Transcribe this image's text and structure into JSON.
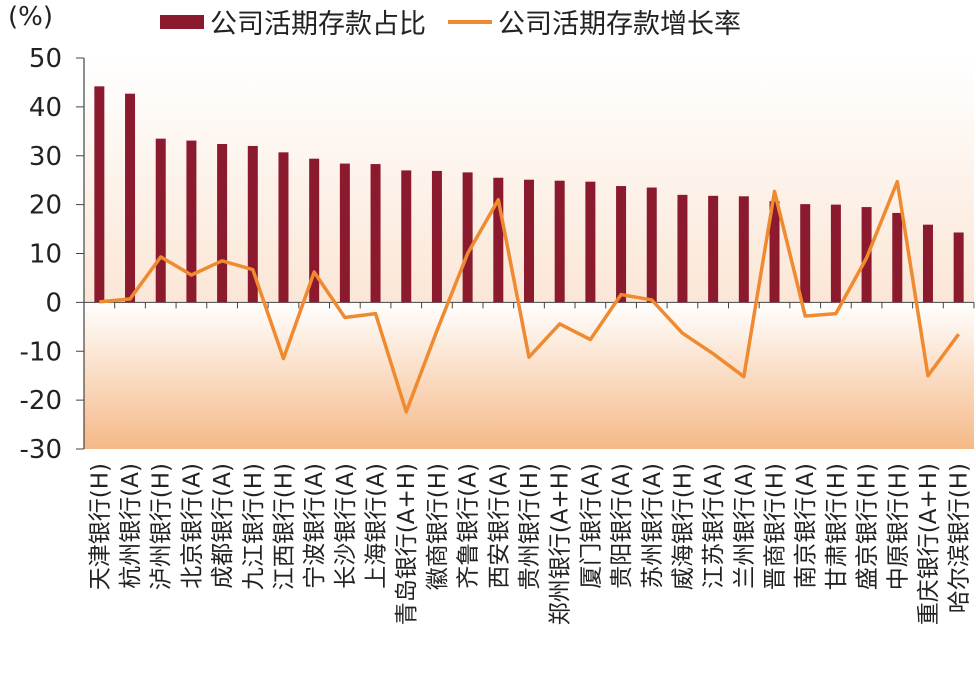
{
  "unit_label": "(%)",
  "colors": {
    "bar": "#8b1a2e",
    "line": "#f08a30",
    "axis": "#444444",
    "bg_top": "#ffffff",
    "bg_bottom": "#f5b987"
  },
  "chart_data": {
    "type": "bar+line",
    "ylim": [
      -30,
      50
    ],
    "yticks": [
      "50",
      "40",
      "30",
      "20",
      "10",
      "0",
      "-10",
      "-20",
      "-30"
    ],
    "ytick_values": [
      50,
      40,
      30,
      20,
      10,
      0,
      -10,
      -20,
      -30
    ],
    "categories": [
      "天津银行(H)",
      "杭州银行(A)",
      "泸州银行(H)",
      "北京银行(A)",
      "成都银行(A)",
      "九江银行(H)",
      "江西银行(H)",
      "宁波银行(A)",
      "长沙银行(A)",
      "上海银行(A)",
      "青岛银行(A+H)",
      "徽商银行(H)",
      "齐鲁银行(A)",
      "西安银行(A)",
      "贵州银行(H)",
      "郑州银行(A+H)",
      "厦门银行(A)",
      "贵阳银行(A)",
      "苏州银行(A)",
      "威海银行(H)",
      "江苏银行(A)",
      "兰州银行(A)",
      "晋商银行(H)",
      "南京银行(A)",
      "甘肃银行(H)",
      "盛京银行(H)",
      "中原银行(H)",
      "重庆银行(A+H)",
      "哈尔滨银行(H)"
    ],
    "series": [
      {
        "name": "公司活期存款占比",
        "type": "bar",
        "values": [
          44.2,
          42.7,
          33.5,
          33.1,
          32.4,
          32.0,
          30.7,
          29.4,
          28.4,
          28.3,
          27.0,
          26.9,
          26.6,
          25.5,
          25.1,
          24.9,
          24.7,
          23.8,
          23.5,
          22.0,
          21.8,
          21.7,
          20.7,
          20.1,
          20.0,
          19.5,
          18.3,
          15.9,
          14.3
        ]
      },
      {
        "name": "公司活期存款增长率",
        "type": "line",
        "values": [
          0.1,
          0.7,
          9.3,
          5.6,
          8.5,
          6.7,
          -11.5,
          6.2,
          -3.1,
          -2.3,
          -22.4,
          -5.8,
          10.0,
          21.0,
          -11.2,
          -4.4,
          -7.6,
          1.6,
          0.5,
          -6.3,
          -10.5,
          -15.2,
          22.7,
          -2.8,
          -2.3,
          9.1,
          24.7,
          -15.0,
          -6.5
        ]
      }
    ],
    "legend_position": "top",
    "grid": false
  }
}
